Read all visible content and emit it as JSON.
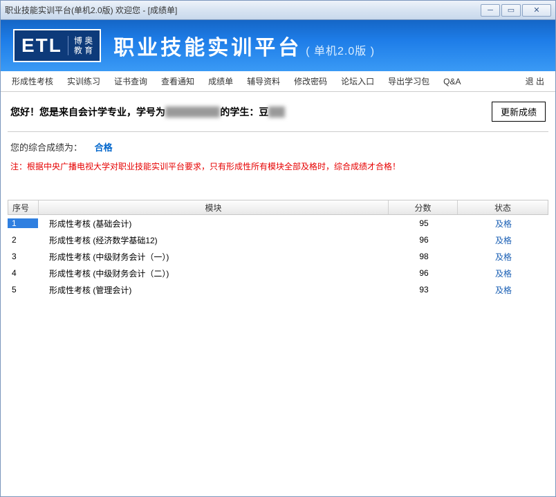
{
  "window": {
    "title": "职业技能实训平台(单机2.0版)   欢迎您 - [成绩单]"
  },
  "banner": {
    "logo_main": "ETL",
    "logo_sub1": "博 奥",
    "logo_sub2": "教 育",
    "title": "职业技能实训平台",
    "version": "( 单机2.0版 )"
  },
  "menu": {
    "items": [
      "形成性考核",
      "实训练习",
      "证书查询",
      "查看通知",
      "成绩单",
      "辅导资料",
      "修改密码",
      "论坛入口",
      "导出学习包",
      "Q&A"
    ],
    "exit": "退 出"
  },
  "greeting": {
    "prefix": "您好！您是来自会计学专业，学号为",
    "mid": "的学生：豆",
    "update_btn": "更新成绩"
  },
  "result": {
    "label": "您的综合成绩为：",
    "value": "合格"
  },
  "notice": "注：根据中央广播电视大学对职业技能实训平台要求，只有形成性所有模块全部及格时，综合成绩才合格！",
  "table": {
    "headers": {
      "no": "序号",
      "module": "模块",
      "score": "分数",
      "status": "状态"
    },
    "rows": [
      {
        "no": "1",
        "module": "形成性考核 (基础会计)",
        "score": "95",
        "status": "及格",
        "selected": true
      },
      {
        "no": "2",
        "module": "形成性考核 (经济数学基础12)",
        "score": "96",
        "status": "及格",
        "selected": false
      },
      {
        "no": "3",
        "module": "形成性考核 (中级财务会计（一）)",
        "score": "98",
        "status": "及格",
        "selected": false
      },
      {
        "no": "4",
        "module": "形成性考核 (中级财务会计（二）)",
        "score": "96",
        "status": "及格",
        "selected": false
      },
      {
        "no": "5",
        "module": "形成性考核 (管理会计)",
        "score": "93",
        "status": "及格",
        "selected": false
      }
    ]
  },
  "colors": {
    "banner_gradient_top": "#1566c6",
    "banner_gradient_bottom": "#3a9af5",
    "link": "#1a5fb4",
    "notice": "#e60000",
    "selected_bg": "#2f7fe0"
  }
}
